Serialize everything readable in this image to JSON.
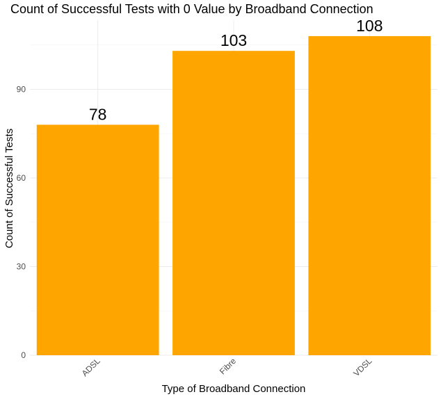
{
  "chart_data": {
    "type": "bar",
    "title": "Count of Successful Tests with 0 Value by Broadband Connection",
    "xlabel": "Type of Broadband Connection",
    "ylabel": "Count of Successful Tests",
    "categories": [
      "ADSL",
      "Fibre",
      "VDSL"
    ],
    "values": [
      78,
      103,
      108
    ],
    "data_labels": [
      "78",
      "103",
      "108"
    ],
    "yticks": [
      0,
      30,
      60,
      90
    ],
    "ytick_labels": [
      "0",
      "30",
      "60",
      "90"
    ],
    "ylim": [
      0,
      113.4
    ],
    "grid": true,
    "legend": "none",
    "x_tick_rotation": 45,
    "colors": {
      "bar": "#FFA500",
      "grid_major": "#EBEBEB",
      "grid_minor": "#F3F3F3",
      "tick_text": "#4D4D4D",
      "background": "#FFFFFF"
    }
  }
}
